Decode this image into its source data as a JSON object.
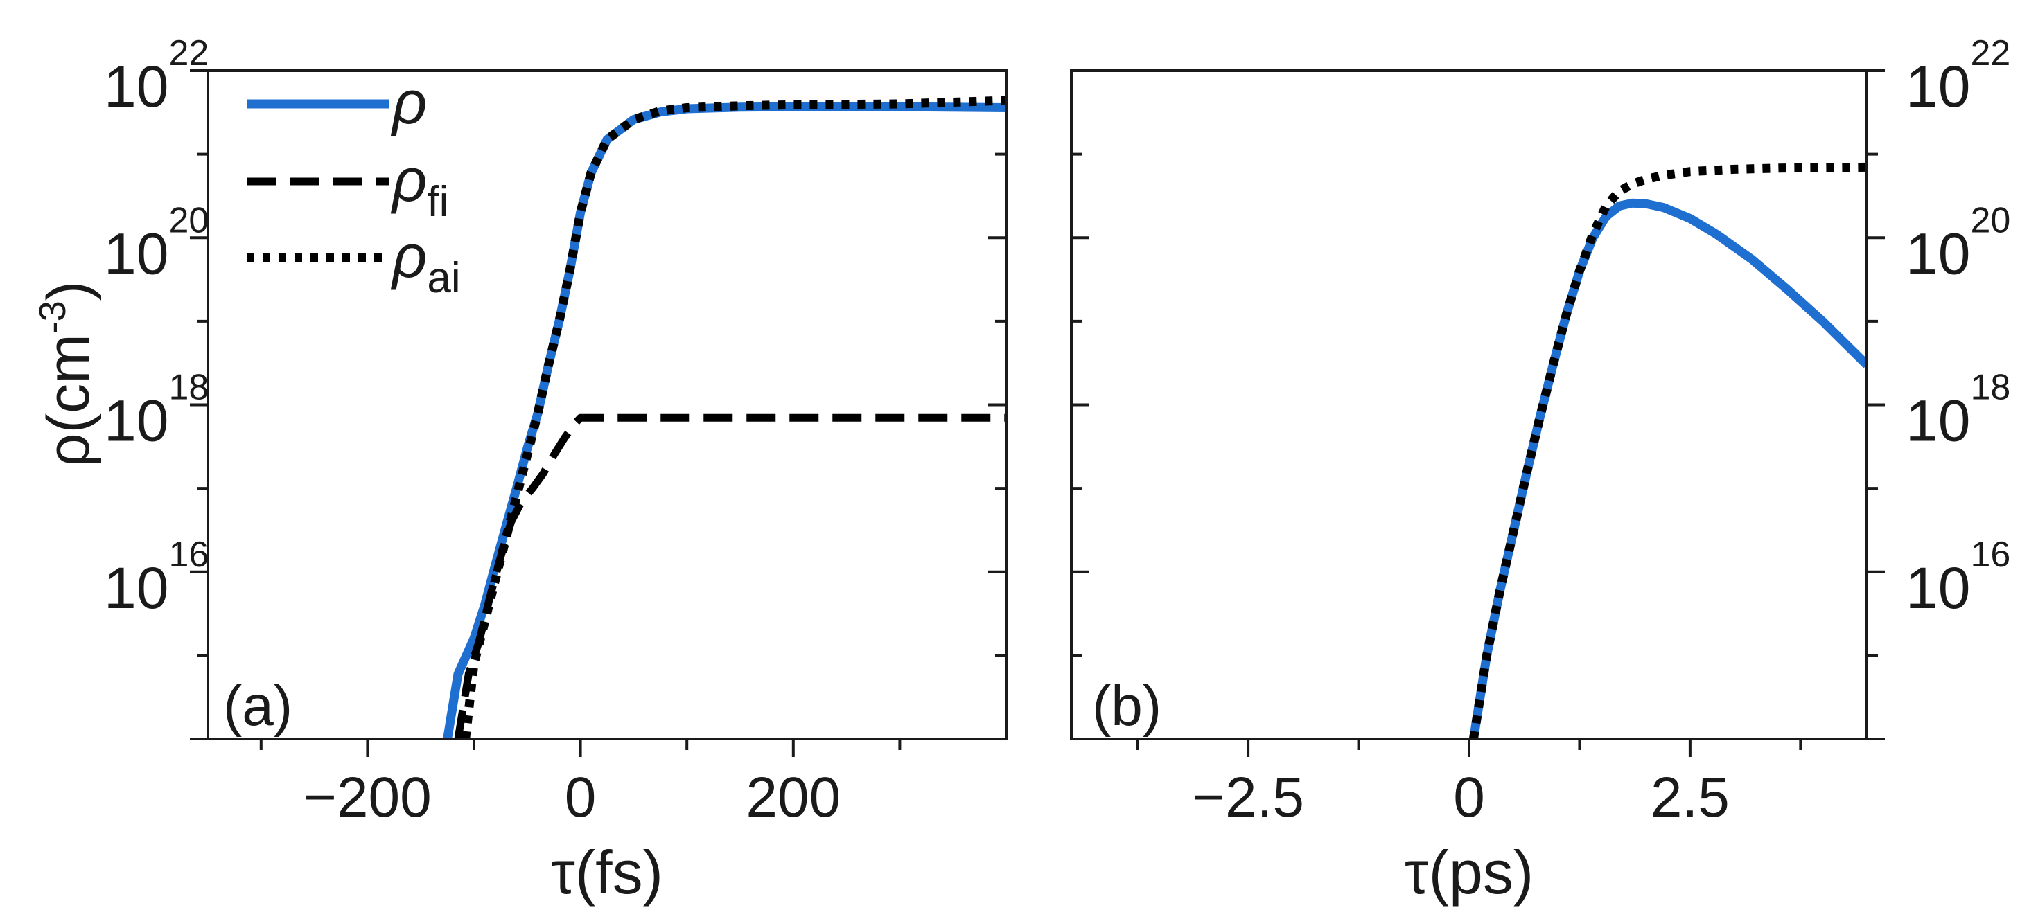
{
  "chart_data": [
    {
      "panel_label": "(a)",
      "type": "line",
      "xlabel": "τ(fs)",
      "ylabel_main": "ρ(cm",
      "ylabel_sup": "-3",
      "ylabel_close": ")",
      "yscale": "log",
      "xlim": [
        -350,
        400
      ],
      "ylim": [
        100000000000000.0,
        1e+22
      ],
      "x_ticks": [
        -200,
        0,
        200
      ],
      "x_tick_labels": [
        "−200",
        "0",
        "200"
      ],
      "x_minor_ticks": [
        -300,
        -100,
        100,
        300
      ],
      "y_ticks": [
        1e+16,
        1e+18,
        1e+20,
        1e+22
      ],
      "y_tick_labels": [
        {
          "base": "10",
          "exp": "16"
        },
        {
          "base": "10",
          "exp": "18"
        },
        {
          "base": "10",
          "exp": "20"
        },
        {
          "base": "10",
          "exp": "22"
        }
      ],
      "y_minor_ticks": [
        1000000000000000.0,
        1e+17,
        1e+19,
        1e+21
      ],
      "legend": {
        "placement": "top-left",
        "entries": [
          {
            "series": "rho",
            "base": "ρ",
            "sub": ""
          },
          {
            "series": "rho_fi",
            "base": "ρ",
            "sub": "fi"
          },
          {
            "series": "rho_ai",
            "base": "ρ",
            "sub": "ai"
          }
        ]
      },
      "series": [
        {
          "id": "rho",
          "color": "#1f6fd1",
          "style": "solid",
          "x": [
            -125,
            -115,
            -100,
            -90,
            -80,
            -70,
            -60,
            -50,
            -40,
            -30,
            -20,
            -10,
            0,
            10,
            25,
            50,
            75,
            100,
            150,
            200,
            300,
            400
          ],
          "y": [
            100000000000000.0,
            600000000000000.0,
            1600000000000000.0,
            4000000000000000.0,
            1.2e+16,
            3.5e+16,
            1e+17,
            3e+17,
            8e+17,
            3e+18,
            1e+19,
            4e+19,
            2e+20,
            6e+20,
            1.5e+21,
            2.6e+21,
            3.2e+21,
            3.5e+21,
            3.65e+21,
            3.7e+21,
            3.7e+21,
            3.6e+21
          ]
        },
        {
          "id": "rho_fi",
          "color": "#000000",
          "style": "dashed",
          "x": [
            -115,
            -105,
            -95,
            -85,
            -75,
            -65,
            -55,
            -45,
            -35,
            -25,
            -15,
            -5,
            0,
            50,
            100,
            200,
            300,
            400
          ],
          "y": [
            100000000000000.0,
            600000000000000.0,
            1500000000000000.0,
            5000000000000000.0,
            1.5e+16,
            4e+16,
            7e+16,
            1e+17,
            1.5e+17,
            2.5e+17,
            4e+17,
            6e+17,
            7e+17,
            7e+17,
            7e+17,
            7e+17,
            7e+17,
            7e+17
          ]
        },
        {
          "id": "rho_ai",
          "color": "#000000",
          "style": "dotted",
          "x": [
            -108,
            -100,
            -90,
            -80,
            -70,
            -60,
            -50,
            -40,
            -30,
            -20,
            -10,
            0,
            10,
            25,
            50,
            75,
            100,
            150,
            200,
            300,
            400
          ],
          "y": [
            100000000000000.0,
            800000000000000.0,
            2500000000000000.0,
            8000000000000000.0,
            2.5e+16,
            8e+16,
            2.5e+17,
            8e+17,
            3e+18,
            1e+19,
            4e+19,
            2e+20,
            6e+20,
            1.5e+21,
            2.6e+21,
            3.3e+21,
            3.6e+21,
            3.8e+21,
            3.9e+21,
            4e+21,
            4.4e+21
          ]
        }
      ]
    },
    {
      "panel_label": "(b)",
      "type": "line",
      "xlabel": "τ(ps)",
      "yscale": "log",
      "xlim": [
        -4.5,
        4.5
      ],
      "ylim": [
        100000000000000.0,
        1e+22
      ],
      "x_ticks": [
        -2.5,
        0,
        2.5
      ],
      "x_tick_labels": [
        "−2.5",
        "0",
        "2.5"
      ],
      "x_minor_ticks": [
        -3.75,
        -1.25,
        1.25,
        3.75
      ],
      "y_ticks": [
        1e+16,
        1e+18,
        1e+20,
        1e+22
      ],
      "y_tick_labels": [
        {
          "base": "10",
          "exp": "16"
        },
        {
          "base": "10",
          "exp": "18"
        },
        {
          "base": "10",
          "exp": "20"
        },
        {
          "base": "10",
          "exp": "22"
        }
      ],
      "y_minor_ticks": [
        1000000000000000.0,
        1e+17,
        1e+19,
        1e+21
      ],
      "series": [
        {
          "id": "rho",
          "color": "#1f6fd1",
          "style": "solid",
          "x": [
            0.05,
            0.2,
            0.35,
            0.5,
            0.65,
            0.8,
            0.95,
            1.1,
            1.25,
            1.4,
            1.55,
            1.7,
            1.85,
            2.0,
            2.2,
            2.5,
            2.8,
            3.2,
            3.6,
            4.0,
            4.5
          ],
          "y": [
            100000000000000.0,
            1000000000000000.0,
            6000000000000000.0,
            3e+16,
            1.5e+17,
            7e+17,
            3e+18,
            1.2e+19,
            4e+19,
            1e+20,
            1.8e+20,
            2.4e+20,
            2.6e+20,
            2.55e+20,
            2.3e+20,
            1.7e+20,
            1.1e+20,
            5.5e+19,
            2.4e+19,
            1e+19,
            3e+18
          ]
        },
        {
          "id": "rho_ai",
          "color": "#000000",
          "style": "dotted",
          "x": [
            0.05,
            0.2,
            0.35,
            0.5,
            0.65,
            0.8,
            0.95,
            1.1,
            1.25,
            1.4,
            1.55,
            1.7,
            1.85,
            2.0,
            2.2,
            2.5,
            3.0,
            3.5,
            4.0,
            4.5
          ],
          "y": [
            100000000000000.0,
            1000000000000000.0,
            6000000000000000.0,
            3e+16,
            1.5e+17,
            7e+17,
            3e+18,
            1.2e+19,
            4e+19,
            1.1e+20,
            2.4e+20,
            3.6e+20,
            4.4e+20,
            5e+20,
            5.6e+20,
            6.2e+20,
            6.6e+20,
            6.8e+20,
            6.9e+20,
            7e+20
          ]
        }
      ]
    }
  ]
}
